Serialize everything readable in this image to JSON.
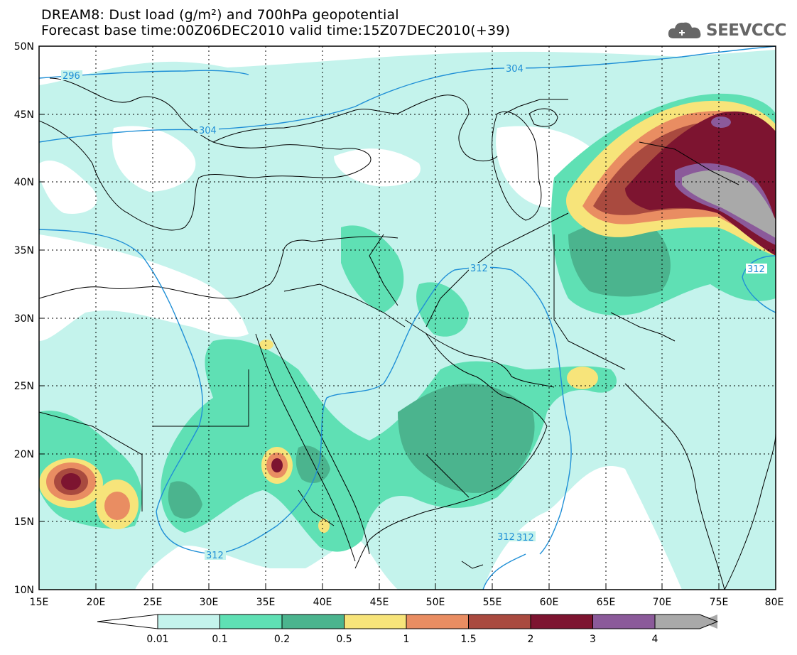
{
  "header": {
    "title_line1": "DREAM8: Dust load (g/m²) and 700hPa geopotential",
    "title_line2": "Forecast base time:00Z06DEC2010 valid time:15Z07DEC2010(+39)"
  },
  "logo": {
    "text": "SEEVCCC",
    "icon": "cloud-icon"
  },
  "map": {
    "lat_labels": [
      "50N",
      "45N",
      "40N",
      "35N",
      "30N",
      "25N",
      "20N",
      "15N",
      "10N"
    ],
    "lon_labels": [
      "15E",
      "20E",
      "25E",
      "30E",
      "35E",
      "40E",
      "45E",
      "50E",
      "55E",
      "60E",
      "65E",
      "70E",
      "75E",
      "80E"
    ],
    "contour_labels": [
      "296",
      "304",
      "304",
      "312",
      "312",
      "312",
      "312",
      "312"
    ]
  },
  "colorbar": {
    "labels": [
      "0.01",
      "0.1",
      "0.2",
      "0.5",
      "1",
      "1.5",
      "2",
      "3",
      "4"
    ],
    "colors": [
      "#c4f3ec",
      "#5fe0b4",
      "#4bb48e",
      "#f7e47a",
      "#e98d62",
      "#a94a3f",
      "#7d1430",
      "#8b5a9a",
      "#a9a9a9"
    ]
  }
}
